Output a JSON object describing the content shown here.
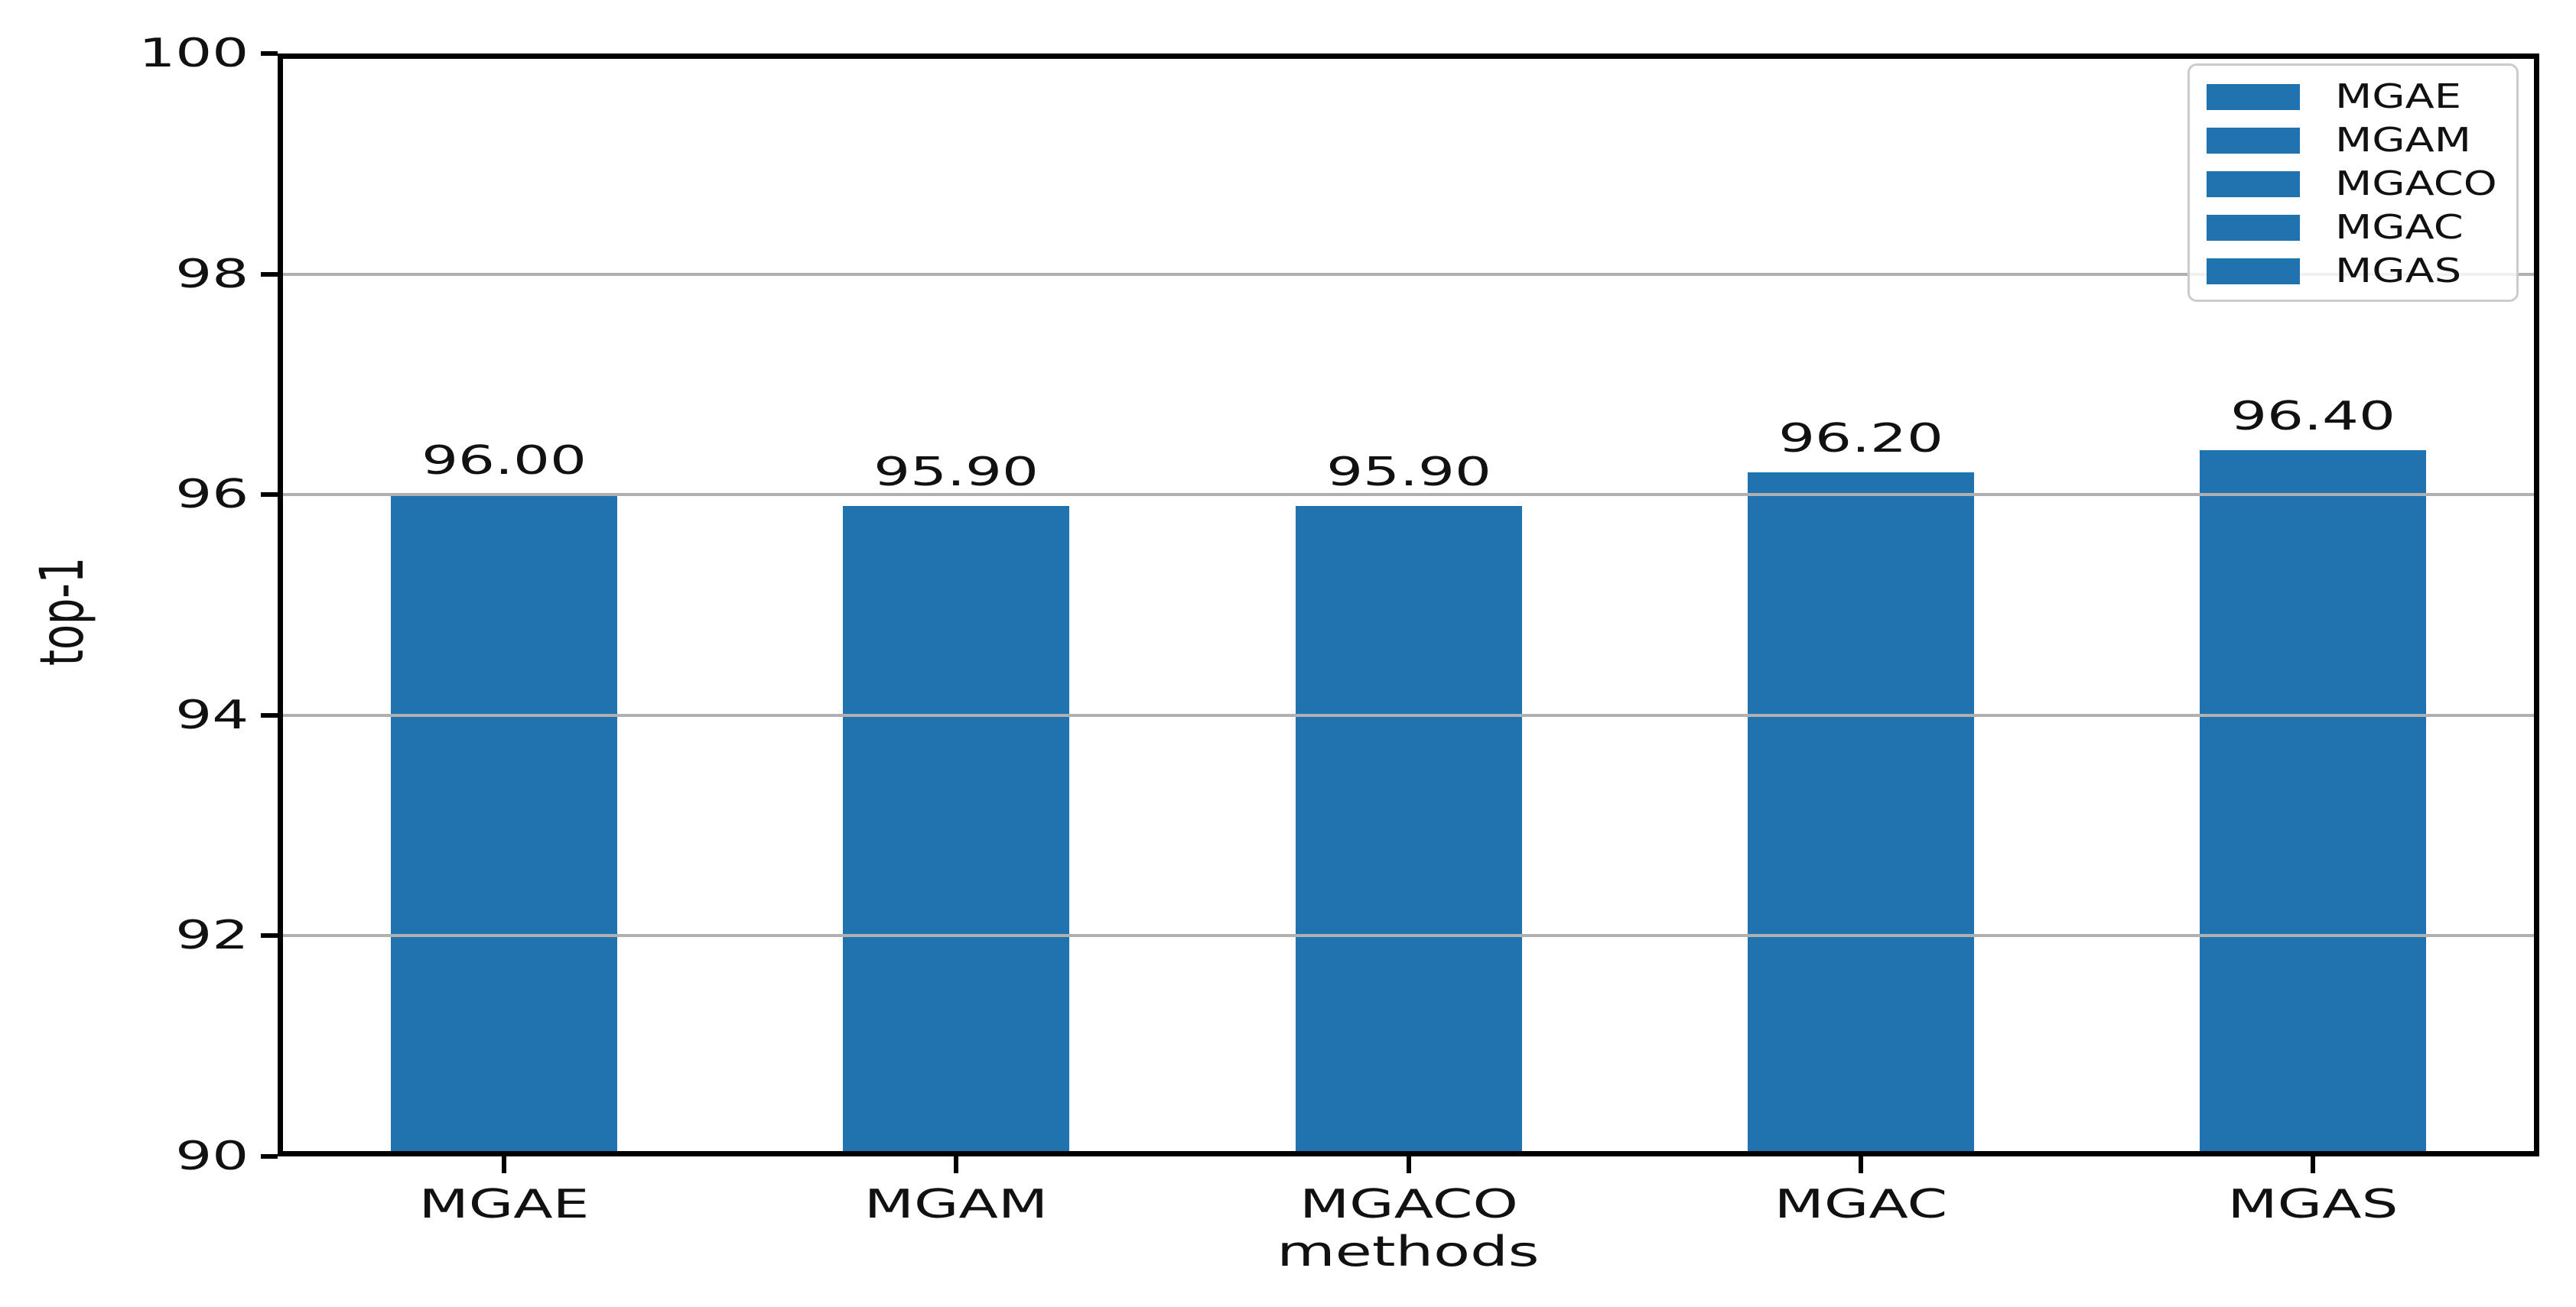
{
  "chart_data": {
    "type": "bar",
    "title": "",
    "xlabel": "methods",
    "ylabel": "top-1",
    "categories": [
      "MGAE",
      "MGAM",
      "MGACO",
      "MGAC",
      "MGAS"
    ],
    "values": [
      96.0,
      95.9,
      95.9,
      96.2,
      96.4
    ],
    "bar_labels": [
      "96.00",
      "95.90",
      "95.90",
      "96.20",
      "96.40"
    ],
    "ylim": [
      90,
      100
    ],
    "yticks": [
      90,
      92,
      94,
      96,
      98,
      100
    ],
    "grid": true,
    "grid_axis": "y",
    "legend": {
      "position": "upper right",
      "entries": [
        "MGAE",
        "MGAM",
        "MGACO",
        "MGAC",
        "MGAS"
      ]
    },
    "colors": {
      "bar": "#2173b0",
      "grid": "#b0b0b0",
      "spine": "#000000",
      "text": "#111111",
      "legend_border": "#cccccc"
    }
  }
}
